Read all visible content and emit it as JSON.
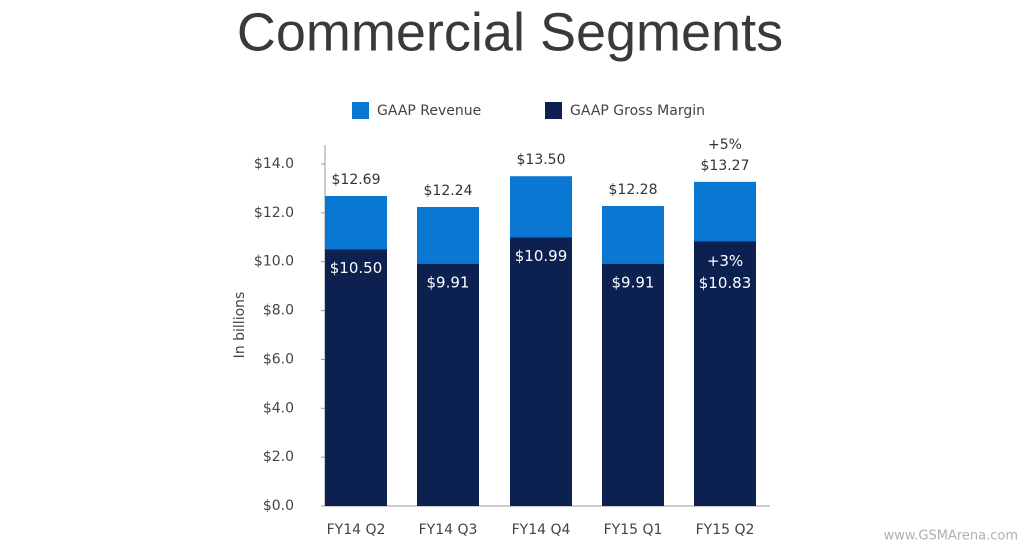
{
  "chart_data": {
    "type": "bar",
    "title": "Commercial Segments",
    "ylabel": "In billions",
    "categories": [
      "FY14 Q2",
      "FY14 Q3",
      "FY14 Q4",
      "FY15 Q1",
      "FY15 Q2"
    ],
    "series": [
      {
        "name": "GAAP Revenue",
        "color": "#0a78d2",
        "values": [
          12.69,
          12.24,
          13.5,
          12.28,
          13.27
        ],
        "value_labels": [
          "$12.69",
          "$12.24",
          "$13.50",
          "$12.28",
          "$13.27"
        ]
      },
      {
        "name": "GAAP Gross Margin",
        "color": "#0c2150",
        "values": [
          10.5,
          9.91,
          10.99,
          9.91,
          10.83
        ],
        "value_labels": [
          "$10.50",
          "$9.91",
          "$10.99",
          "$9.91",
          "$10.83"
        ]
      }
    ],
    "annotations": [
      "+5%",
      "+3%"
    ],
    "ylim": [
      0,
      14
    ],
    "yticks": [
      {
        "value": 0,
        "label": "$0.0"
      },
      {
        "value": 2,
        "label": "$2.0"
      },
      {
        "value": 4,
        "label": "$4.0"
      },
      {
        "value": 6,
        "label": "$6.0"
      },
      {
        "value": 8,
        "label": "$8.0"
      },
      {
        "value": 10,
        "label": "$10.0"
      },
      {
        "value": 12,
        "label": "$12.0"
      },
      {
        "value": 14,
        "label": "$14.0"
      }
    ],
    "watermark": "www.GSMArena.com"
  }
}
